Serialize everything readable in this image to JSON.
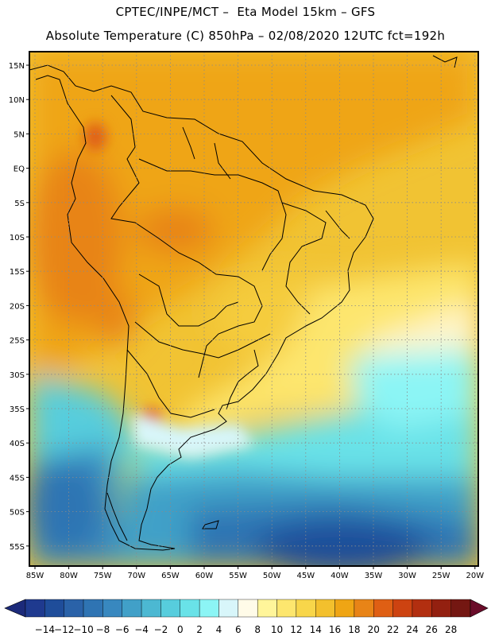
{
  "header": {
    "title_line1": "CPTEC/INPE/MCT –  Eta Model 15km – GFS",
    "title_line2": "Absolute Temperature (C) 850hPa – 02/08/2020 12UTC fct=192h"
  },
  "map": {
    "lat_labels": [
      "15N",
      "10N",
      "5N",
      "EQ",
      "5S",
      "10S",
      "15S",
      "20S",
      "25S",
      "30S",
      "35S",
      "40S",
      "45S",
      "50S",
      "55S"
    ],
    "lon_labels": [
      "85W",
      "80W",
      "75W",
      "70W",
      "65W",
      "60W",
      "55W",
      "50W",
      "45W",
      "40W",
      "35W",
      "30W",
      "25W",
      "20W"
    ],
    "grid": "dotted"
  },
  "colorbar": {
    "labels": [
      "-14",
      "-12",
      "-10",
      "-8",
      "-6",
      "-4",
      "-2",
      "0",
      "2",
      "4",
      "6",
      "8",
      "10",
      "12",
      "14",
      "16",
      "18",
      "20",
      "22",
      "24",
      "26",
      "28"
    ],
    "colors": [
      "#1f3a8f",
      "#1f4d9a",
      "#2a62a8",
      "#2f74b3",
      "#3888bf",
      "#41a0c8",
      "#4cb8d2",
      "#57cddd",
      "#69e2e8",
      "#8cf5f5",
      "#d8f6fa",
      "#fffbe8",
      "#fff59a",
      "#fde66e",
      "#f8d64a",
      "#f3c02d",
      "#efa514",
      "#e88417",
      "#df5f14",
      "#cd4311",
      "#b22f10",
      "#932010",
      "#741712"
    ],
    "min_arrow_color": "#1c2a7a",
    "max_arrow_color": "#6a0c2a"
  }
}
